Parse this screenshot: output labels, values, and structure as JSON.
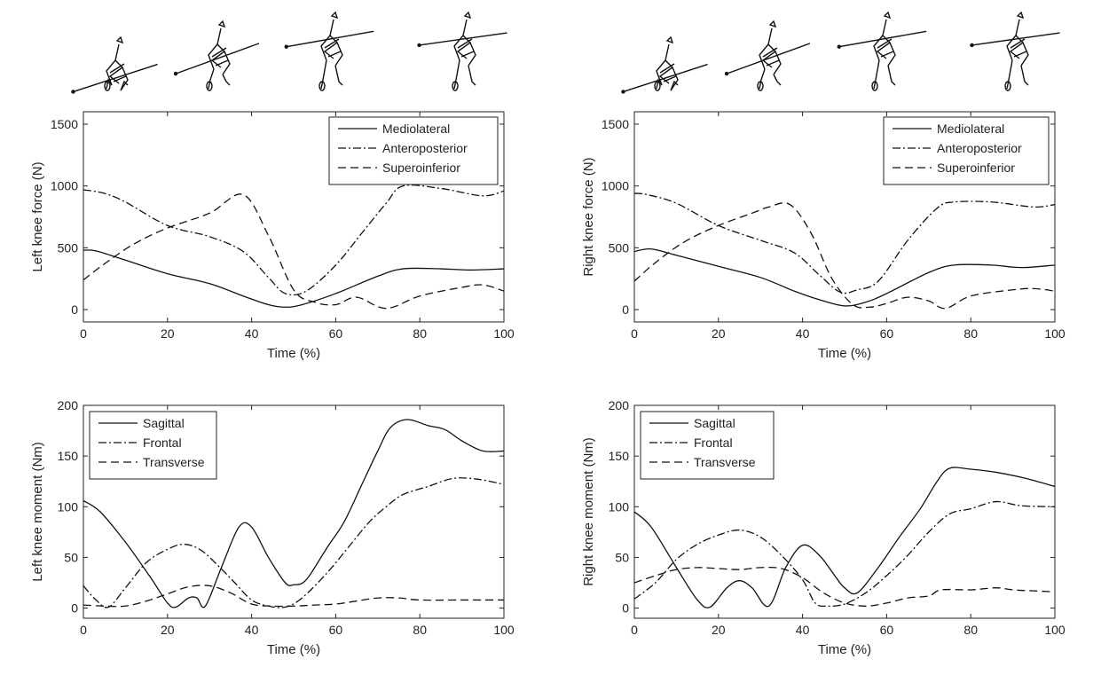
{
  "chart_data": [
    {
      "type": "line",
      "panel": "top-left",
      "xlabel": "Time (%)",
      "ylabel": "Left knee force (N)",
      "xlim": [
        0,
        100
      ],
      "ylim": [
        -100,
        1600
      ],
      "xticks": [
        0,
        20,
        40,
        60,
        80,
        100
      ],
      "yticks": [
        0,
        500,
        1000,
        1500
      ],
      "legend_position": "top-right",
      "series": [
        {
          "name": "Mediolateral",
          "style": "solid",
          "x": [
            0,
            3,
            10,
            20,
            30,
            38,
            44,
            48,
            52,
            60,
            70,
            76,
            85,
            92,
            100
          ],
          "y": [
            480,
            475,
            400,
            290,
            210,
            110,
            40,
            20,
            40,
            130,
            270,
            330,
            330,
            320,
            330
          ]
        },
        {
          "name": "Anteroposterior",
          "style": "dashdot",
          "x": [
            0,
            5,
            10,
            20,
            30,
            38,
            44,
            48,
            53,
            60,
            66,
            72,
            76,
            85,
            95,
            100
          ],
          "y": [
            970,
            940,
            870,
            680,
            590,
            470,
            260,
            130,
            150,
            360,
            610,
            860,
            1000,
            980,
            920,
            960
          ]
        },
        {
          "name": "Superoinferior",
          "style": "dashed",
          "x": [
            0,
            5,
            12,
            20,
            30,
            38,
            44,
            50,
            55,
            60,
            65,
            72,
            80,
            90,
            95,
            100
          ],
          "y": [
            240,
            370,
            530,
            660,
            780,
            930,
            600,
            160,
            60,
            40,
            100,
            10,
            110,
            180,
            200,
            150
          ]
        }
      ]
    },
    {
      "type": "line",
      "panel": "top-right",
      "xlabel": "Time (%)",
      "ylabel": "Right knee force (N)",
      "xlim": [
        0,
        100
      ],
      "ylim": [
        -100,
        1600
      ],
      "xticks": [
        0,
        20,
        40,
        60,
        80,
        100
      ],
      "yticks": [
        0,
        500,
        1000,
        1500
      ],
      "legend_position": "top-right",
      "series": [
        {
          "name": "Mediolateral",
          "style": "solid",
          "x": [
            0,
            4,
            10,
            20,
            30,
            38,
            44,
            50,
            55,
            60,
            70,
            76,
            85,
            92,
            100
          ],
          "y": [
            470,
            490,
            440,
            350,
            260,
            150,
            80,
            30,
            60,
            130,
            300,
            360,
            360,
            340,
            360
          ]
        },
        {
          "name": "Anteroposterior",
          "style": "dashdot",
          "x": [
            0,
            3,
            10,
            20,
            30,
            38,
            44,
            49,
            53,
            58,
            65,
            72,
            76,
            85,
            95,
            100
          ],
          "y": [
            940,
            930,
            860,
            680,
            560,
            460,
            280,
            140,
            160,
            230,
            560,
            820,
            870,
            870,
            830,
            850
          ]
        },
        {
          "name": "Superoinferior",
          "style": "dashed",
          "x": [
            0,
            5,
            12,
            20,
            28,
            32,
            37,
            42,
            47,
            52,
            56,
            60,
            65,
            70,
            74,
            80,
            90,
            95,
            100
          ],
          "y": [
            230,
            380,
            550,
            680,
            780,
            830,
            850,
            620,
            250,
            40,
            20,
            50,
            100,
            70,
            10,
            110,
            160,
            170,
            150
          ]
        }
      ]
    },
    {
      "type": "line",
      "panel": "bottom-left",
      "xlabel": "Time (%)",
      "ylabel": "Left knee moment (Nm)",
      "xlim": [
        0,
        100
      ],
      "ylim": [
        -10,
        200
      ],
      "xticks": [
        0,
        20,
        40,
        60,
        80,
        100
      ],
      "yticks": [
        0,
        50,
        100,
        150,
        200
      ],
      "legend_position": "top-left",
      "series": [
        {
          "name": "Sagittal",
          "style": "solid",
          "x": [
            0,
            4,
            10,
            16,
            20,
            22,
            25,
            27,
            29,
            33,
            37,
            40,
            44,
            48,
            50,
            53,
            58,
            62,
            66,
            70,
            73,
            77,
            82,
            86,
            90,
            95,
            100
          ],
          "y": [
            106,
            95,
            65,
            30,
            5,
            1,
            10,
            10,
            2,
            42,
            80,
            80,
            50,
            25,
            23,
            28,
            60,
            85,
            120,
            155,
            178,
            186,
            180,
            176,
            165,
            155,
            155
          ]
        },
        {
          "name": "Frontal",
          "style": "dashdot",
          "x": [
            0,
            3,
            6,
            10,
            15,
            20,
            24,
            28,
            32,
            36,
            40,
            44,
            48,
            52,
            58,
            63,
            68,
            72,
            76,
            82,
            88,
            94,
            100
          ],
          "y": [
            22,
            8,
            1,
            20,
            45,
            58,
            63,
            57,
            42,
            25,
            8,
            2,
            1,
            10,
            35,
            60,
            85,
            100,
            112,
            120,
            128,
            127,
            122
          ]
        },
        {
          "name": "Transverse",
          "style": "dashed",
          "x": [
            0,
            5,
            10,
            15,
            20,
            25,
            30,
            35,
            40,
            45,
            50,
            55,
            60,
            65,
            70,
            75,
            80,
            90,
            100
          ],
          "y": [
            3,
            2,
            2,
            7,
            14,
            21,
            22,
            15,
            4,
            2,
            2,
            3,
            4,
            7,
            10,
            10,
            8,
            8,
            8
          ]
        }
      ]
    },
    {
      "type": "line",
      "panel": "bottom-right",
      "xlabel": "Time (%)",
      "ylabel": "Right knee moment (Nm)",
      "xlim": [
        0,
        100
      ],
      "ylim": [
        -10,
        200
      ],
      "xticks": [
        0,
        20,
        40,
        60,
        80,
        100
      ],
      "yticks": [
        0,
        50,
        100,
        150,
        200
      ],
      "legend_position": "top-left",
      "series": [
        {
          "name": "Sagittal",
          "style": "solid",
          "x": [
            0,
            4,
            10,
            15,
            18,
            22,
            25,
            28,
            32,
            36,
            40,
            44,
            48,
            50,
            53,
            58,
            63,
            68,
            72,
            75,
            80,
            86,
            93,
            100
          ],
          "y": [
            95,
            80,
            40,
            8,
            1,
            20,
            27,
            20,
            2,
            40,
            62,
            52,
            30,
            20,
            15,
            40,
            70,
            98,
            125,
            138,
            137,
            134,
            128,
            120
          ]
        },
        {
          "name": "Frontal",
          "style": "dashdot",
          "x": [
            0,
            5,
            10,
            15,
            20,
            25,
            30,
            35,
            40,
            43,
            46,
            50,
            55,
            60,
            65,
            70,
            75,
            80,
            86,
            92,
            100
          ],
          "y": [
            9,
            25,
            48,
            63,
            72,
            77,
            70,
            52,
            28,
            5,
            2,
            4,
            15,
            32,
            52,
            75,
            93,
            98,
            105,
            101,
            100
          ]
        },
        {
          "name": "Transverse",
          "style": "dashed",
          "x": [
            0,
            5,
            10,
            15,
            20,
            25,
            30,
            35,
            40,
            45,
            50,
            55,
            60,
            65,
            70,
            73,
            80,
            86,
            90,
            95,
            100
          ],
          "y": [
            25,
            32,
            38,
            40,
            39,
            38,
            40,
            39,
            30,
            15,
            5,
            2,
            5,
            10,
            12,
            18,
            18,
            20,
            18,
            17,
            16
          ]
        }
      ]
    }
  ]
}
